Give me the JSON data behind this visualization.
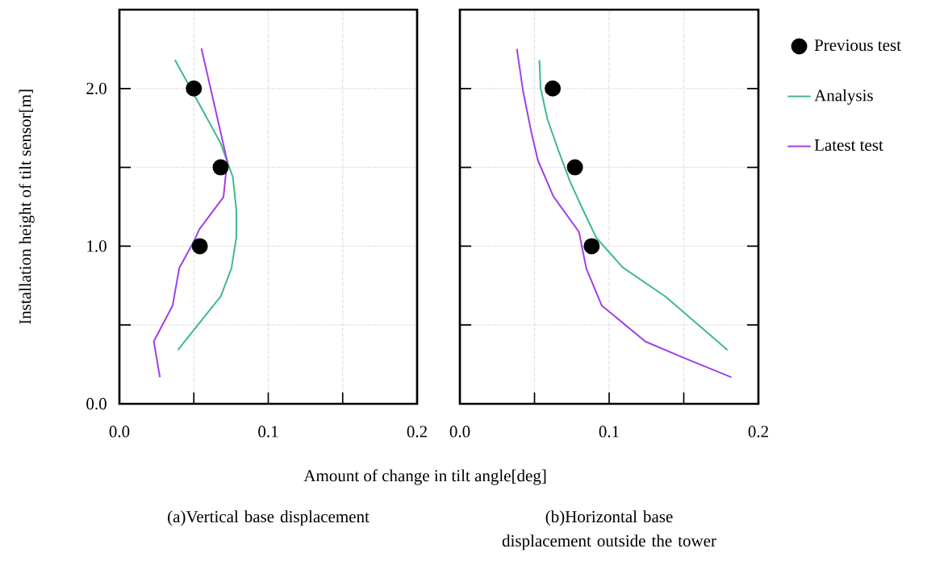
{
  "chart_data": [
    {
      "type": "line",
      "title": "(a)Vertical base displacement",
      "ylabel": "Installation height of tilt sensor[m]",
      "xlim": [
        0,
        0.2
      ],
      "ylim": [
        0,
        2.5
      ],
      "xticks": [
        {
          "value": 0,
          "label": "0.0"
        },
        {
          "value": 0.05,
          "label": null
        },
        {
          "value": 0.1,
          "label": "0.1"
        },
        {
          "value": 0.15,
          "label": null
        },
        {
          "value": 0.2,
          "label": "0.2"
        }
      ],
      "yticks": [
        {
          "value": 0,
          "label": "0.0"
        },
        {
          "value": 0.5,
          "label": null
        },
        {
          "value": 1,
          "label": "1.0"
        },
        {
          "value": 1.5,
          "label": null
        },
        {
          "value": 2,
          "label": "2.0"
        }
      ],
      "grid": true,
      "series": [
        {
          "type": "scatter",
          "marker": "circle",
          "color": "#000000",
          "x": [
            0.05,
            0.068,
            0.054
          ],
          "values": [
            2.0,
            1.5,
            1.0
          ]
        },
        {
          "color": "#40b890",
          "x": [
            0.0373,
            0.0501,
            0.0573,
            0.0681,
            0.0726,
            0.0762,
            0.0786,
            0.0786,
            0.0753,
            0.0681,
            0.0393
          ],
          "values": [
            2.182,
            null,
            1.838,
            1.651,
            1.532,
            1.439,
            1.226,
            1.056,
            0.861,
            0.682,
            0.342
          ]
        },
        {
          "color": "#a040e8",
          "x": [
            0.0551,
            0.0726,
            0.0714,
            0.0699,
            0.0537,
            0.0501,
            0.0402,
            0.0357,
            0.0231,
            0.0272
          ],
          "values": [
            2.255,
            1.532,
            1.447,
            1.311,
            1.107,
            1.031,
            0.861,
            0.622,
            0.396,
            0.168
          ]
        }
      ]
    },
    {
      "type": "line",
      "title": "(b)Horizontal base displacement outside the tower",
      "xlabel": "Amount of change in tilt angle[deg]",
      "xlim": [
        0,
        0.2
      ],
      "ylim": [
        0,
        2.5
      ],
      "xticks": [
        {
          "value": 0,
          "label": "0.0"
        },
        {
          "value": 0.05,
          "label": null
        },
        {
          "value": 0.1,
          "label": "0.1"
        },
        {
          "value": 0.15,
          "label": null
        },
        {
          "value": 0.2,
          "label": "0.2"
        }
      ],
      "yticks": [
        {
          "value": 0,
          "label": null
        },
        {
          "value": 0.5,
          "label": null
        },
        {
          "value": 1,
          "label": null
        },
        {
          "value": 1.5,
          "label": null
        },
        {
          "value": 2,
          "label": null
        }
      ],
      "tick_labels": "x",
      "grid": true,
      "legend": "right",
      "series": [
        {
          "name": "Previous test",
          "type": "scatter",
          "marker": "circle",
          "color": "#000000",
          "x": [
            0.0622,
            0.0771,
            0.0883
          ],
          "values": [
            2.0,
            1.5,
            1.0
          ]
        },
        {
          "name": "Analysis",
          "color": "#40b890",
          "x": [
            0.0533,
            0.0541,
            0.0586,
            0.0658,
            0.0739,
            0.0829,
            0.0914,
            0.109,
            0.1378,
            0.1793
          ],
          "values": [
            2.18,
            2.002,
            1.807,
            1.612,
            1.408,
            1.222,
            1.053,
            0.866,
            0.68,
            0.341
          ]
        },
        {
          "name": "Latest test",
          "color": "#a040e8",
          "x": [
            0.0382,
            0.0423,
            0.0477,
            0.0523,
            0.0627,
            0.0798,
            0.0847,
            0.095,
            0.1243,
            0.1496,
            0.182
          ],
          "values": [
            2.251,
            1.985,
            1.731,
            1.544,
            1.315,
            1.09,
            0.858,
            0.624,
            0.395,
            0.293,
            0.168
          ]
        }
      ]
    }
  ]
}
